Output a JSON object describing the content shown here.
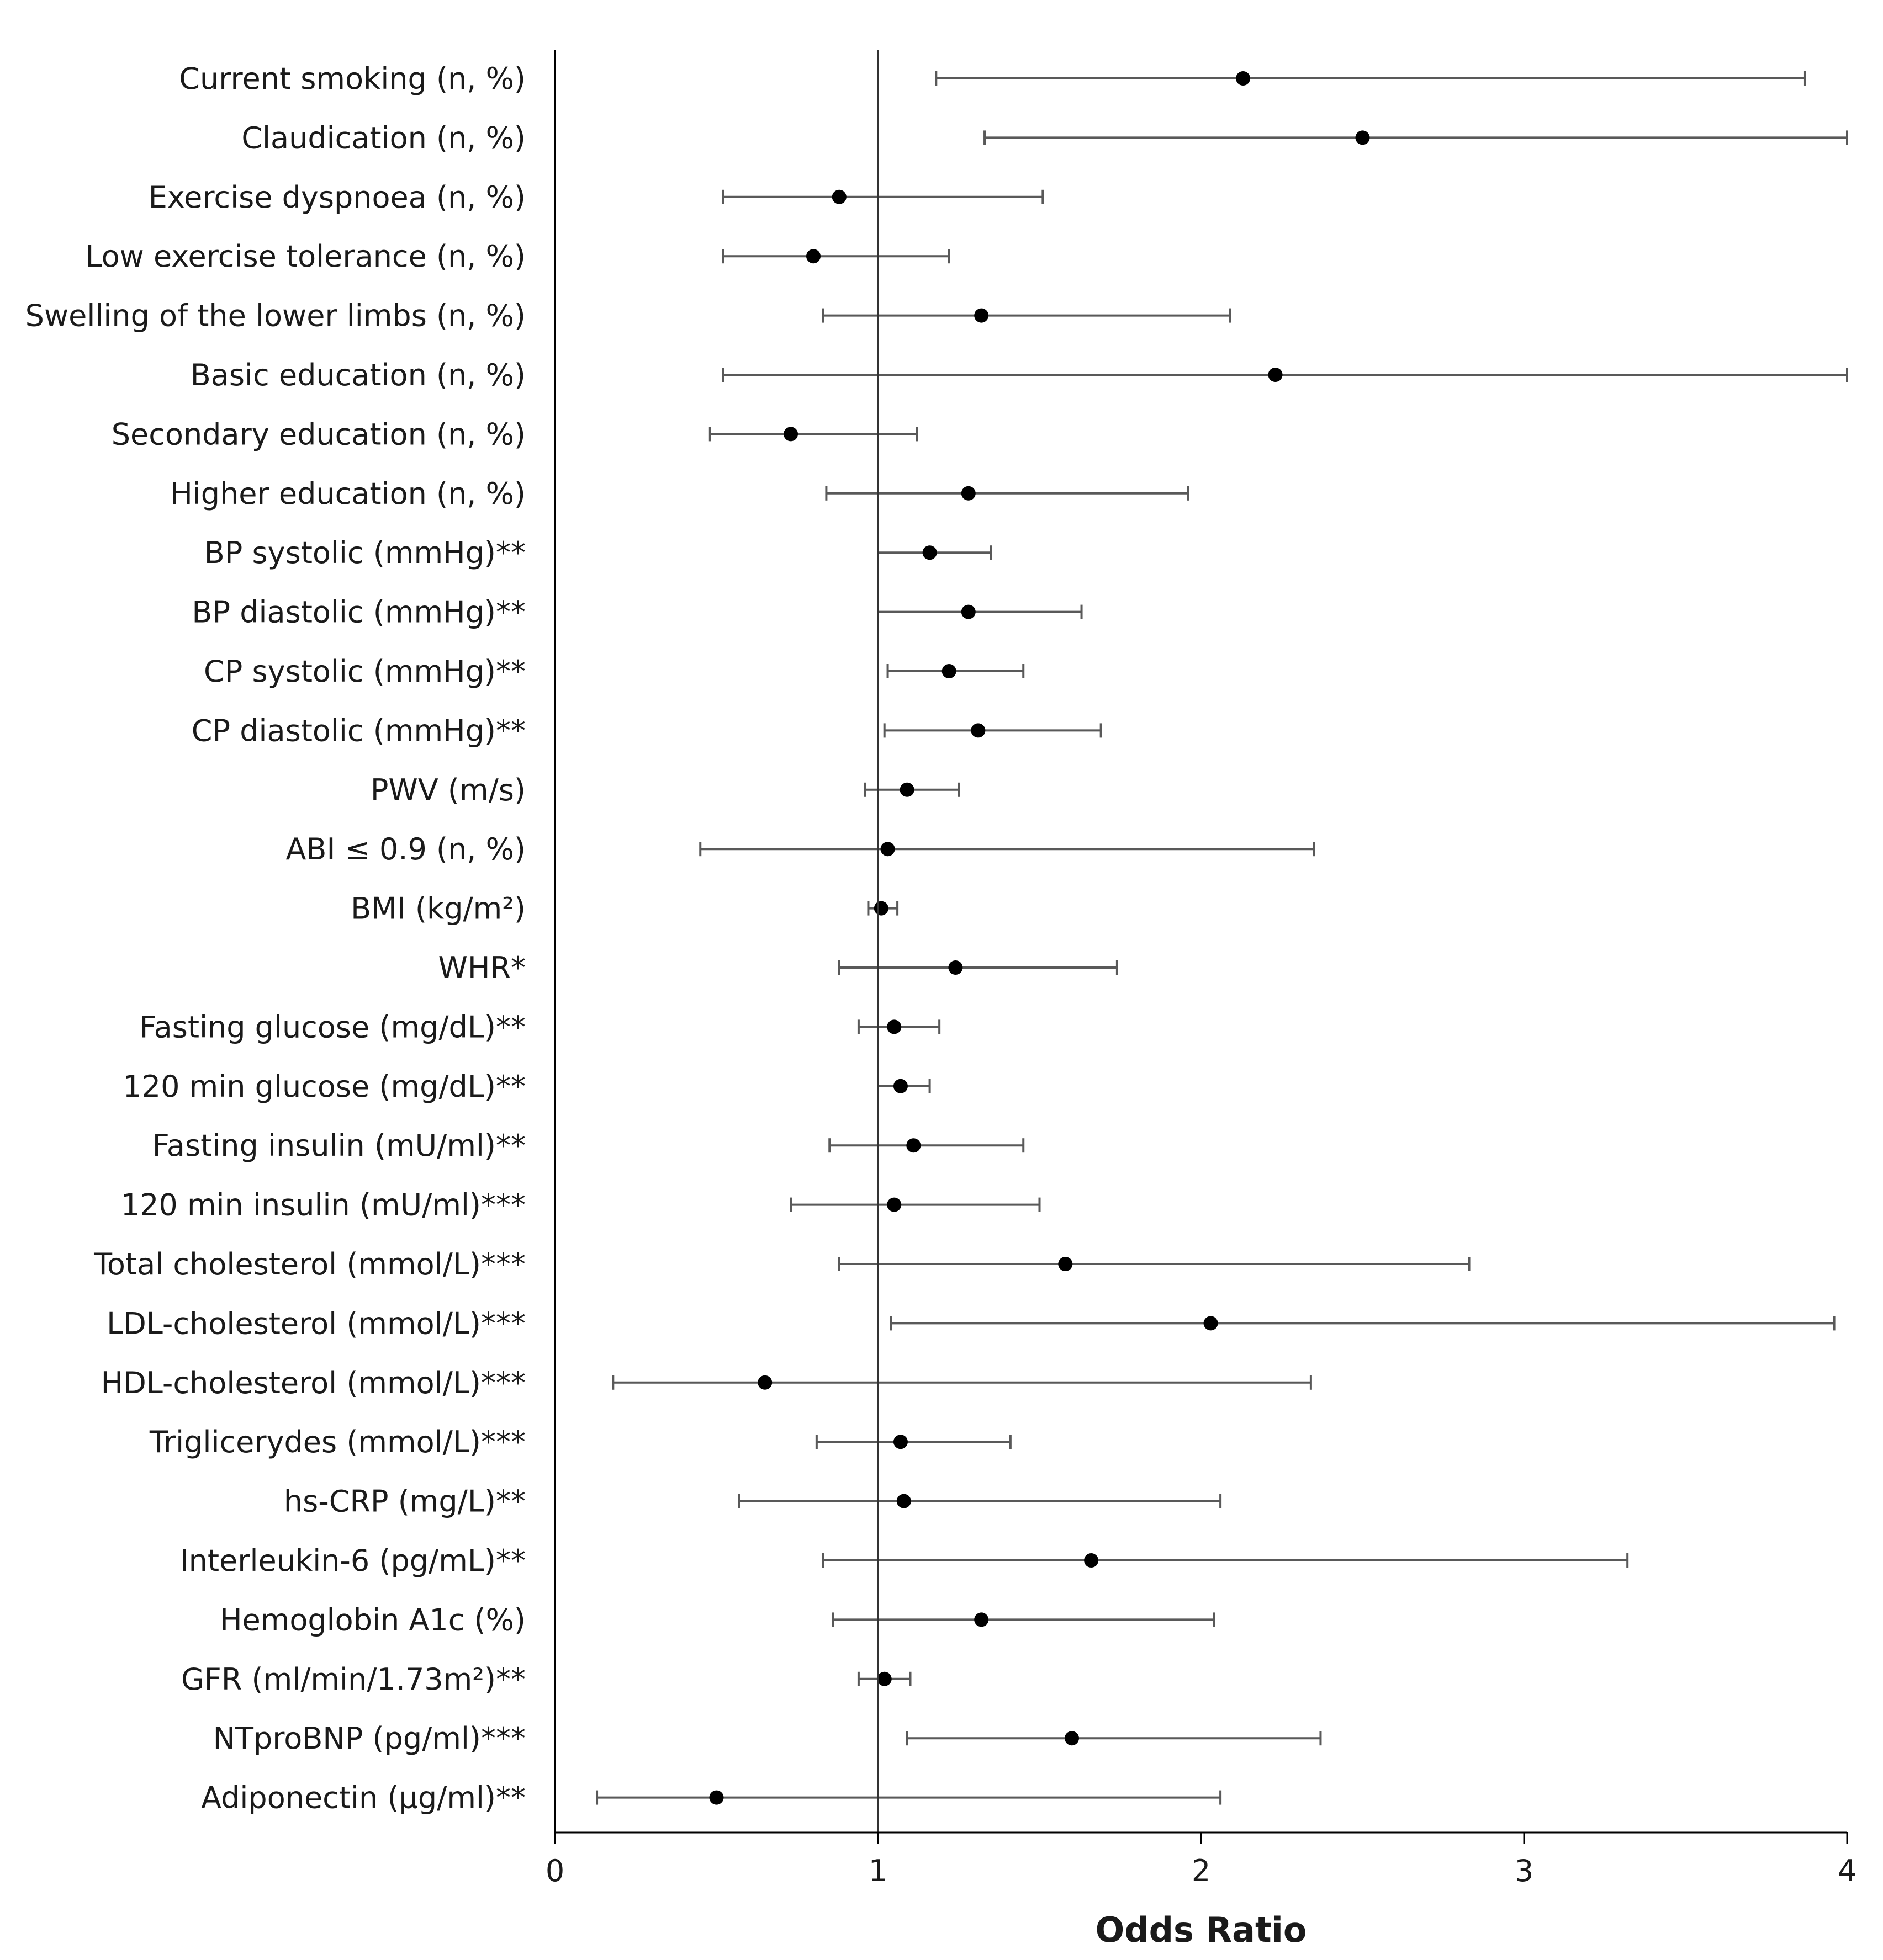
{
  "chart_data": {
    "type": "forest",
    "title": "",
    "xlabel": "Odds Ratio",
    "ylabel": "",
    "xlim": [
      0,
      4
    ],
    "xticks": [
      "0",
      "1",
      "2",
      "3",
      "4"
    ],
    "reference_line": 1,
    "colors": {
      "marker": "#000000",
      "whisker": "#595959",
      "axis": "#000000"
    },
    "rows": [
      {
        "label": "Current smoking (n, %)",
        "or": 2.13,
        "lo": 1.18,
        "hi": 3.87
      },
      {
        "label": "Claudication  (n, %)",
        "or": 2.5,
        "lo": 1.33,
        "hi": 4.0
      },
      {
        "label": "Exercise dyspnoea (n, %)",
        "or": 0.88,
        "lo": 0.52,
        "hi": 1.51
      },
      {
        "label": "Low exercise tolerance (n, %)",
        "or": 0.8,
        "lo": 0.52,
        "hi": 1.22
      },
      {
        "label": "Swelling of the lower limbs (n, %)",
        "or": 1.32,
        "lo": 0.83,
        "hi": 2.09
      },
      {
        "label": "Basic education (n, %)",
        "or": 2.23,
        "lo": 0.52,
        "hi": 4.0
      },
      {
        "label": "Secondary education (n, %)",
        "or": 0.73,
        "lo": 0.48,
        "hi": 1.12
      },
      {
        "label": "Higher education (n, %)",
        "or": 1.28,
        "lo": 0.84,
        "hi": 1.96
      },
      {
        "label": "BP systolic (mmHg)**",
        "or": 1.16,
        "lo": 1.0,
        "hi": 1.35
      },
      {
        "label": "BP diastolic (mmHg)**",
        "or": 1.28,
        "lo": 1.0,
        "hi": 1.63
      },
      {
        "label": "CP systolic (mmHg)**",
        "or": 1.22,
        "lo": 1.03,
        "hi": 1.45
      },
      {
        "label": "CP diastolic (mmHg)**",
        "or": 1.31,
        "lo": 1.02,
        "hi": 1.69
      },
      {
        "label": "PWV (m/s)",
        "or": 1.09,
        "lo": 0.96,
        "hi": 1.25
      },
      {
        "label": "ABI ≤ 0.9 (n, %)",
        "or": 1.03,
        "lo": 0.45,
        "hi": 2.35
      },
      {
        "label": "BMI (kg/m²)",
        "or": 1.01,
        "lo": 0.97,
        "hi": 1.06
      },
      {
        "label": "WHR*",
        "or": 1.24,
        "lo": 0.88,
        "hi": 1.74
      },
      {
        "label": "Fasting glucose (mg/dL)**",
        "or": 1.05,
        "lo": 0.94,
        "hi": 1.19
      },
      {
        "label": "120 min glucose (mg/dL)**",
        "or": 1.07,
        "lo": 1.0,
        "hi": 1.16
      },
      {
        "label": "Fasting insulin (mU/ml)**",
        "or": 1.11,
        "lo": 0.85,
        "hi": 1.45
      },
      {
        "label": "120 min insulin (mU/ml)***",
        "or": 1.05,
        "lo": 0.73,
        "hi": 1.5
      },
      {
        "label": "Total cholesterol (mmol/L)***",
        "or": 1.58,
        "lo": 0.88,
        "hi": 2.83
      },
      {
        "label": "LDL-cholesterol (mmol/L)***",
        "or": 2.03,
        "lo": 1.04,
        "hi": 3.96
      },
      {
        "label": "HDL-cholesterol (mmol/L)***",
        "or": 0.65,
        "lo": 0.18,
        "hi": 2.34
      },
      {
        "label": "Triglicerydes (mmol/L)***",
        "or": 1.07,
        "lo": 0.81,
        "hi": 1.41
      },
      {
        "label": "hs-CRP (mg/L)**",
        "or": 1.08,
        "lo": 0.57,
        "hi": 2.06
      },
      {
        "label": "Interleukin-6 (pg/mL)**",
        "or": 1.66,
        "lo": 0.83,
        "hi": 3.32
      },
      {
        "label": "Hemoglobin A1c (%)",
        "or": 1.32,
        "lo": 0.86,
        "hi": 2.04
      },
      {
        "label": "GFR (ml/min/1.73m²)**",
        "or": 1.02,
        "lo": 0.94,
        "hi": 1.1
      },
      {
        "label": "NTproBNP (pg/ml)***",
        "or": 1.6,
        "lo": 1.09,
        "hi": 2.37
      },
      {
        "label": "Adiponectin (µg/ml)**",
        "or": 0.5,
        "lo": 0.13,
        "hi": 2.06
      }
    ]
  }
}
